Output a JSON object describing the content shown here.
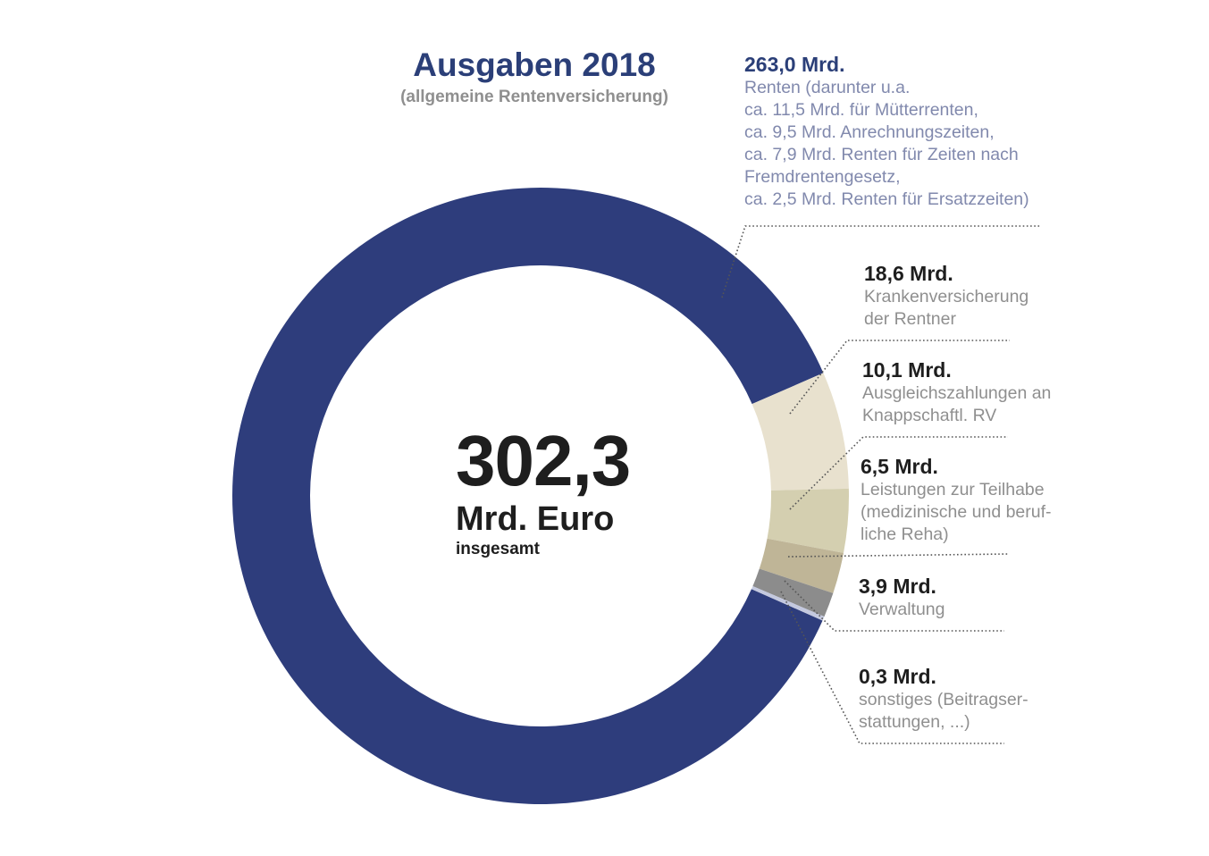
{
  "title": "Ausgaben 2018",
  "subtitle": "(allgemeine Rentenversicherung)",
  "center": {
    "total": "302,3",
    "unit": "Mrd. Euro",
    "note": "insgesamt"
  },
  "colors": {
    "renten": "#2e3d7c",
    "kvdr": "#e8e1ce",
    "knappschaft": "#d4cfb0",
    "teilhabe": "#bfb597",
    "verwaltung": "#8c8c8c",
    "sonstiges": "#c4c9df"
  },
  "chart_data": {
    "type": "donut",
    "total": 302.3,
    "unit": "Mrd. Euro",
    "slices": [
      {
        "key": "renten",
        "value": 263.0,
        "value_label": "263,0 Mrd.",
        "desc": [
          "Renten (darunter u.a.",
          "ca. 11,5 Mrd. für Mütterrenten,",
          "ca. 9,5 Mrd. Anrechnungszeiten,",
          "ca. 7,9 Mrd. Renten für Zeiten nach",
          "Fremdrentengesetz,",
          "ca. 2,5 Mrd. Renten für Ersatzzeiten)"
        ]
      },
      {
        "key": "kvdr",
        "value": 18.6,
        "value_label": "18,6 Mrd.",
        "desc": [
          "Krankenversicherung",
          "der Rentner"
        ]
      },
      {
        "key": "knappschaft",
        "value": 10.1,
        "value_label": "10,1 Mrd.",
        "desc": [
          "Ausgleichszahlungen an",
          "Knappschaftl. RV"
        ]
      },
      {
        "key": "teilhabe",
        "value": 6.5,
        "value_label": "6,5 Mrd.",
        "desc": [
          "Leistungen zur Teilhabe",
          "(medizinische und beruf-",
          "liche Reha)"
        ]
      },
      {
        "key": "verwaltung",
        "value": 3.9,
        "value_label": "3,9 Mrd.",
        "desc": [
          "Verwaltung"
        ]
      },
      {
        "key": "sonstiges",
        "value": 0.3,
        "value_label": "0,3 Mrd.",
        "desc": [
          "sonstiges (Beitragser-",
          "stattungen, ...)"
        ]
      }
    ]
  }
}
